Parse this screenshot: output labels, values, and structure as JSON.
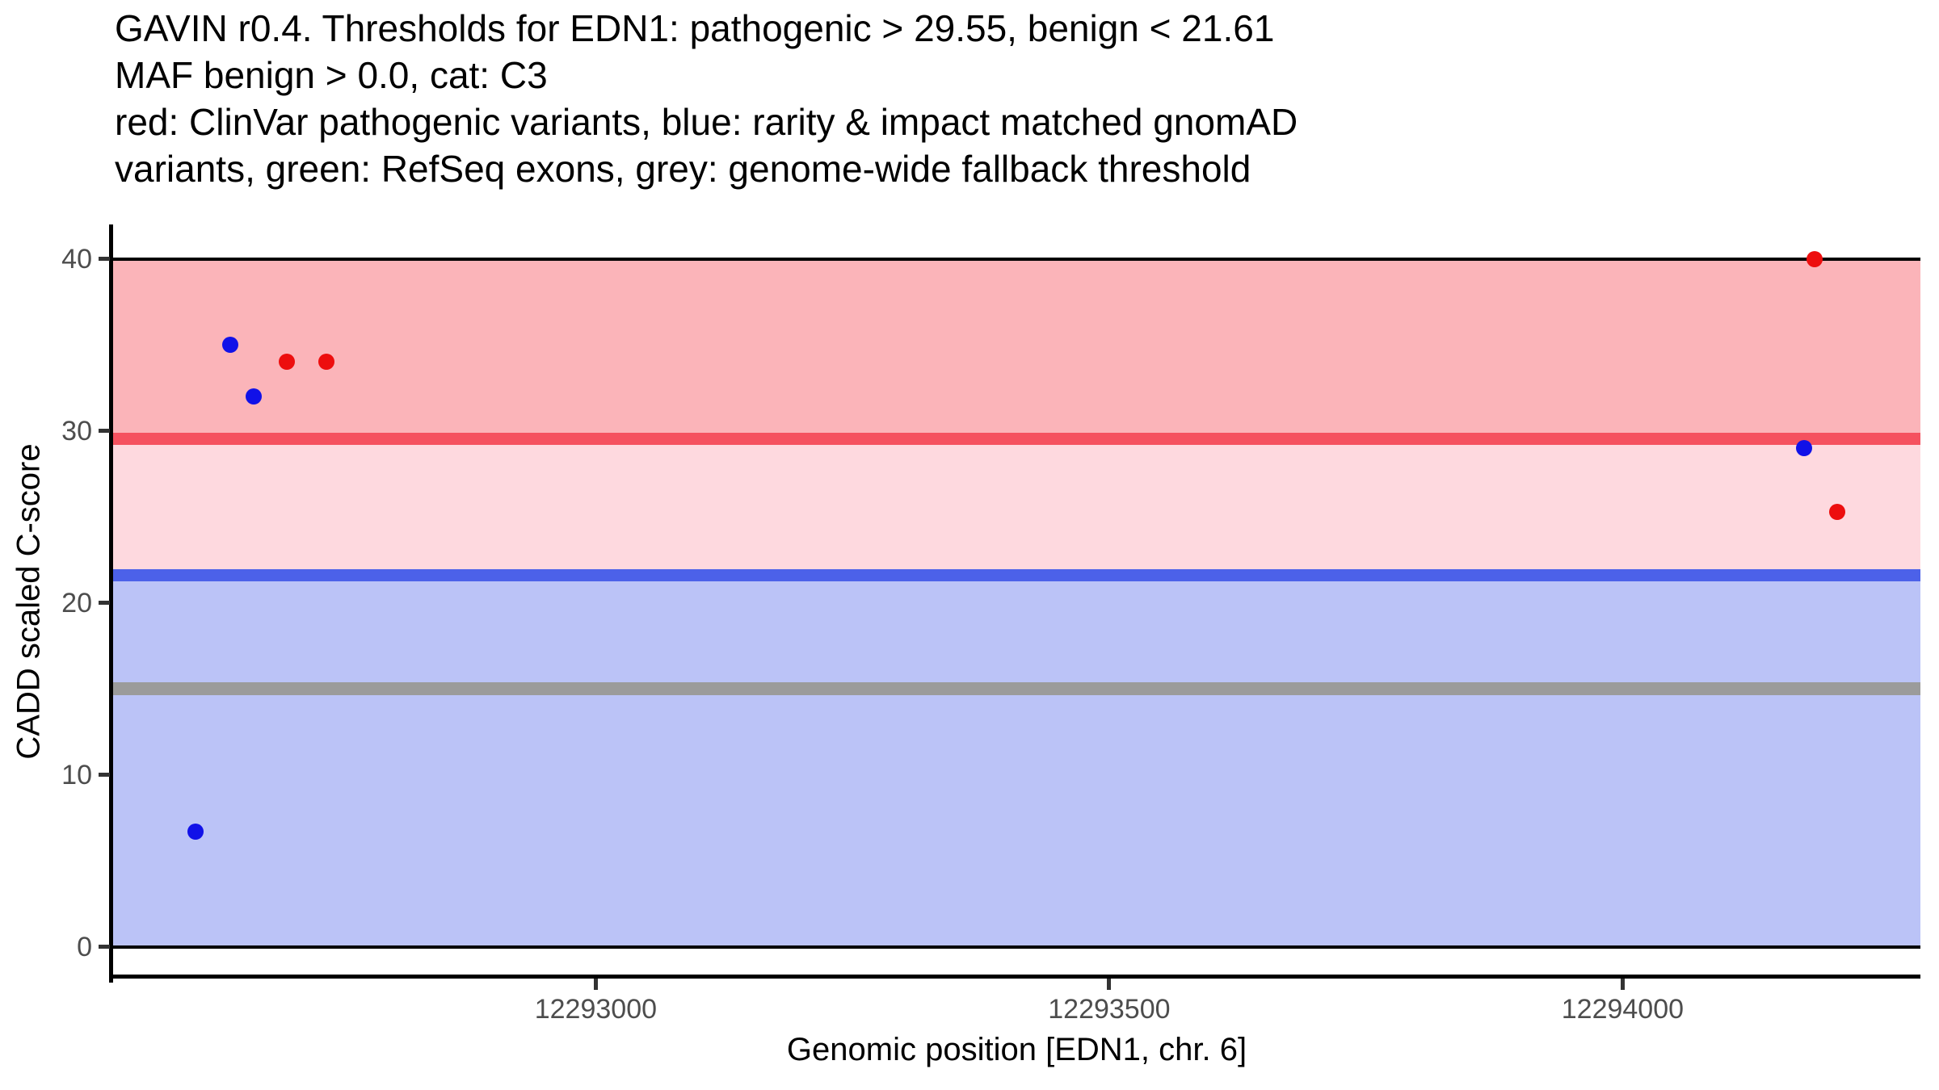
{
  "title_lines": [
    "GAVIN r0.4. Thresholds for EDN1: pathogenic > 29.55, benign < 21.61",
    "MAF benign > 0.0, cat: C3",
    "red: ClinVar pathogenic variants, blue: rarity & impact matched gnomAD",
    "variants, green: RefSeq exons, grey: genome-wide fallback threshold"
  ],
  "chart_data": {
    "type": "scatter",
    "gene": "EDN1",
    "chromosome": "6",
    "xlabel": "Genomic position [EDN1, chr. 6]",
    "ylabel": "CADD scaled C-score",
    "xlim": [
      12292530,
      12294290
    ],
    "ylim": [
      -1.85,
      42.0
    ],
    "x_ticks": [
      12293000,
      12293500,
      12294000
    ],
    "x_tick_labels": [
      "12293000",
      "12293500",
      "12294000"
    ],
    "y_ticks": [
      0,
      10,
      20,
      30,
      40
    ],
    "y_tick_labels": [
      "0",
      "10",
      "20",
      "30",
      "40"
    ],
    "grid": false,
    "legend_position": "none",
    "thresholds": {
      "pathogenic_gt": 29.55,
      "benign_lt": 21.61,
      "maf_benign_gt": 0.0,
      "category": "C3",
      "genome_wide_fallback": 15
    },
    "bands": [
      {
        "name": "pathogenic-zone",
        "from": 29.55,
        "to": 40,
        "color": "#FBB4B9"
      },
      {
        "name": "intermediate-zone",
        "from": 21.61,
        "to": 29.55,
        "color": "#FED9DF"
      },
      {
        "name": "benign-zone",
        "from": 0,
        "to": 21.61,
        "color": "#BBC3F7"
      }
    ],
    "lines": [
      {
        "name": "cap-line-top",
        "y": 40,
        "color": "#000000",
        "thickness": 4
      },
      {
        "name": "pathogenic-threshold-line",
        "y": 29.55,
        "color": "#F5515F",
        "thickness": 15
      },
      {
        "name": "benign-threshold-line",
        "y": 21.61,
        "color": "#4C61E9",
        "thickness": 15
      },
      {
        "name": "genome-wide-fallback-line",
        "y": 15,
        "color": "#9B9B9B",
        "thickness": 16
      },
      {
        "name": "cap-line-bottom",
        "y": 0,
        "color": "#000000",
        "thickness": 4
      }
    ],
    "point_radius": 10,
    "series": [
      {
        "name": "ClinVar pathogenic variants",
        "color": "#ED0E0E",
        "points": [
          {
            "x": 12292699,
            "y": 34.0
          },
          {
            "x": 12292738,
            "y": 34.0
          },
          {
            "x": 12294187,
            "y": 40.0
          },
          {
            "x": 12294209,
            "y": 25.3
          }
        ]
      },
      {
        "name": "rarity & impact matched gnomAD variants",
        "color": "#1111E8",
        "points": [
          {
            "x": 12292610,
            "y": 6.7
          },
          {
            "x": 12292644,
            "y": 35.0
          },
          {
            "x": 12292667,
            "y": 32.0
          },
          {
            "x": 12294177,
            "y": 29.0
          }
        ]
      }
    ]
  }
}
